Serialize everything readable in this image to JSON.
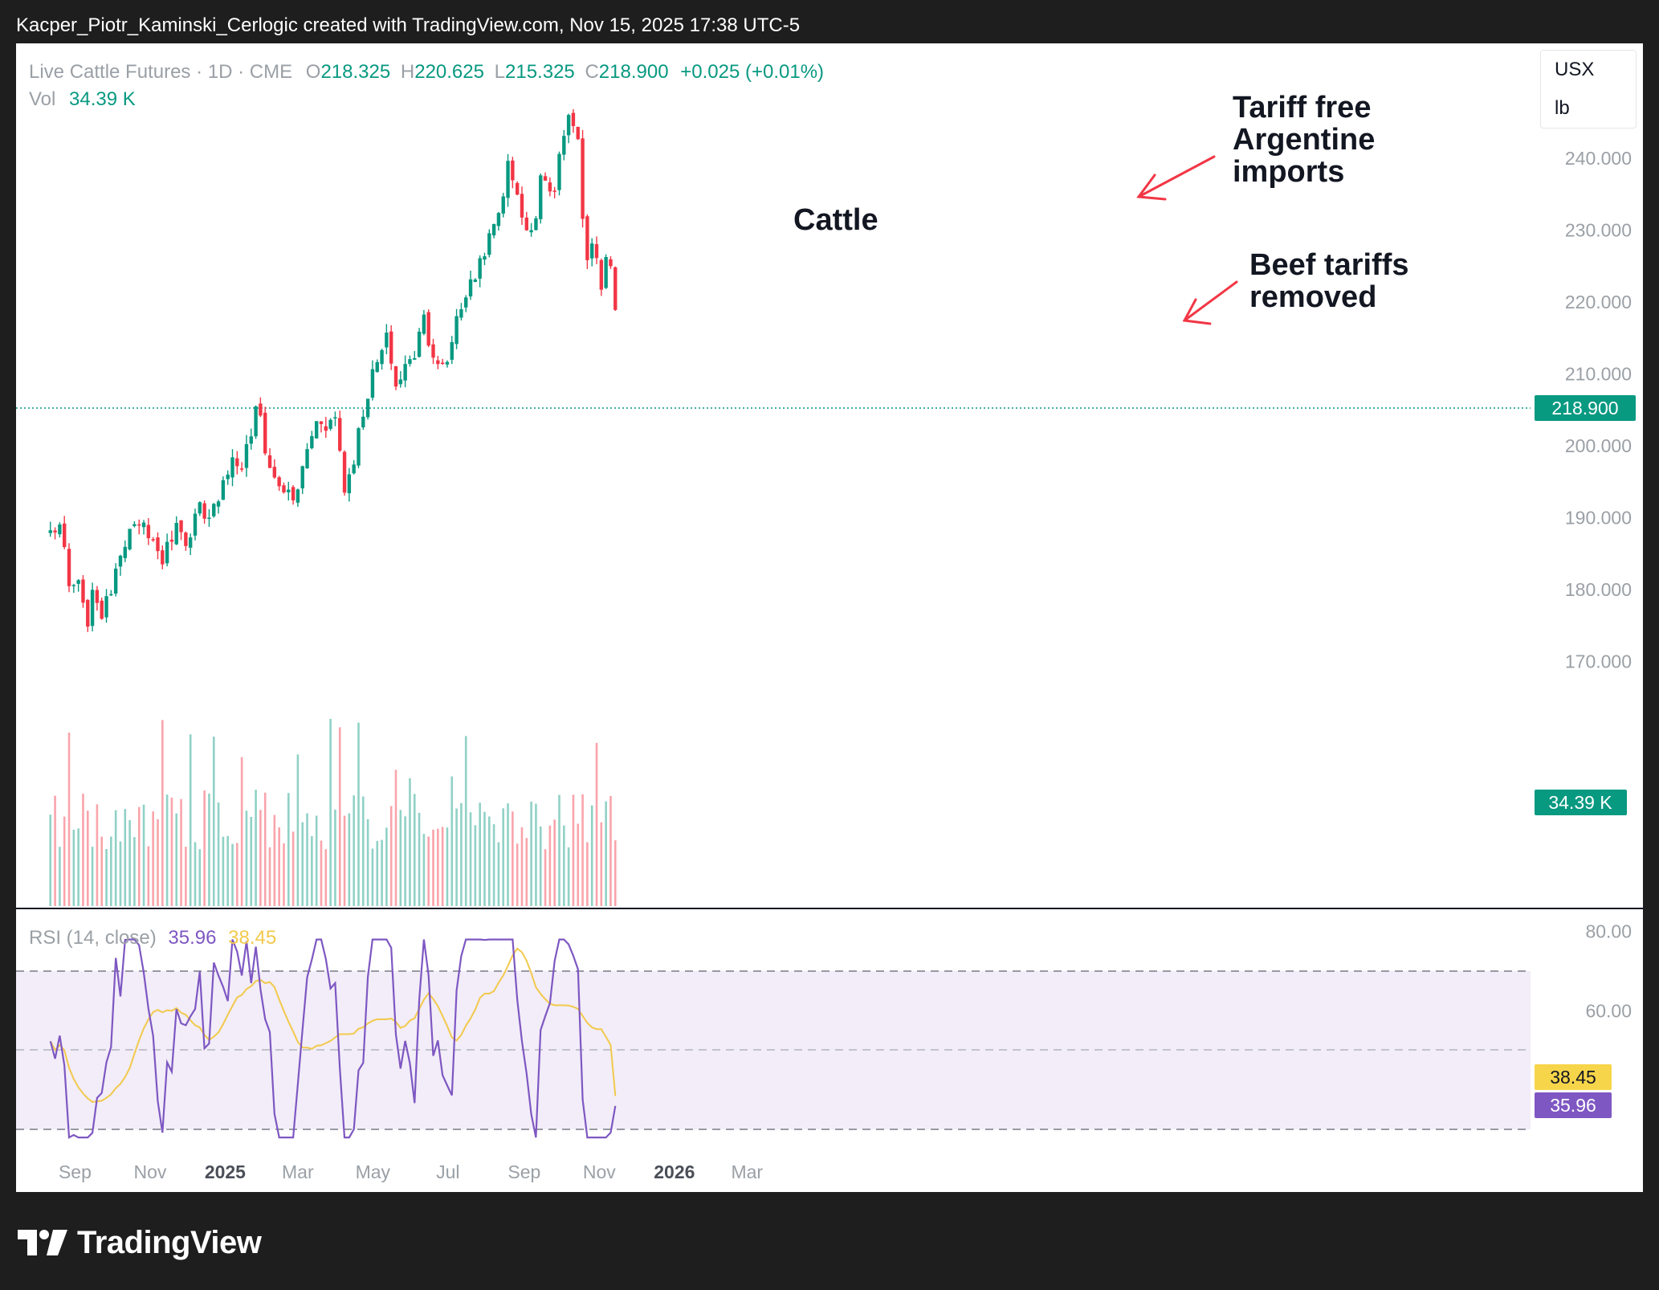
{
  "header": {
    "title": "Kacper_Piotr_Kaminski_Cerlogic created with TradingView.com, Nov 15, 2025 17:38 UTC-5"
  },
  "legend": {
    "symbol": "Live Cattle Futures · 1D · CME",
    "o_label": "O",
    "o_value": "218.325",
    "h_label": "H",
    "h_value": "220.625",
    "l_label": "L",
    "l_value": "215.325",
    "c_label": "C",
    "c_value": "218.900",
    "change": "+0.025 (+0.01%)",
    "vol_label": "Vol",
    "vol_value": "34.39 K"
  },
  "units": {
    "currency": "USX",
    "unit": "lb"
  },
  "annotations": {
    "title": "Cattle",
    "note1": [
      "Tariff free",
      "Argentine",
      "imports"
    ],
    "note2": [
      "Beef tariffs",
      "removed"
    ]
  },
  "rsi": {
    "label": "RSI (14, close)",
    "value": "35.96",
    "ma_value": "38.45"
  },
  "badges": {
    "price": "218.900",
    "volume": "34.39 K",
    "rsi_ma": "38.45",
    "rsi": "35.96"
  },
  "footer": {
    "brand": "TradingView"
  },
  "colors": {
    "up": "#089981",
    "down": "#f23645",
    "rsi_line": "#7e57c2",
    "rsi_ma": "#f2c94c",
    "rsi_band": "#ede7f6",
    "arrow": "#f23645"
  },
  "chart_data": [
    {
      "type": "candlestick",
      "title": "Cattle",
      "series_name": "Live Cattle Futures",
      "ylim": [
        165,
        247
      ],
      "y_ticks": [
        240,
        230,
        220,
        210,
        200,
        190,
        180,
        170
      ],
      "y_tick_labels": [
        "240.000",
        "230.000",
        "220.000",
        "210.000",
        "200.000",
        "190.000",
        "180.000",
        "170.000"
      ],
      "x_ticks": [
        "Sep",
        "Nov",
        "2025",
        "Mar",
        "May",
        "Jul",
        "Sep",
        "Nov",
        "2026",
        "Mar"
      ],
      "last_price": 218.9,
      "path": [
        [
          "2024-08-12",
          188
        ],
        [
          "2024-08-20",
          189
        ],
        [
          "2024-08-27",
          180
        ],
        [
          "2024-09-03",
          181
        ],
        [
          "2024-09-10",
          175
        ],
        [
          "2024-09-17",
          180
        ],
        [
          "2024-09-24",
          176
        ],
        [
          "2024-10-01",
          181
        ],
        [
          "2024-10-08",
          186
        ],
        [
          "2024-10-15",
          188
        ],
        [
          "2024-10-22",
          188
        ],
        [
          "2024-10-29",
          189
        ],
        [
          "2024-11-05",
          186
        ],
        [
          "2024-11-12",
          184
        ],
        [
          "2024-11-19",
          188
        ],
        [
          "2024-11-26",
          189
        ],
        [
          "2024-12-03",
          186
        ],
        [
          "2024-12-10",
          192
        ],
        [
          "2024-12-17",
          188
        ],
        [
          "2024-12-24",
          192
        ],
        [
          "2024-12-31",
          196
        ],
        [
          "2025-01-07",
          198
        ],
        [
          "2025-01-14",
          197
        ],
        [
          "2025-01-21",
          201
        ],
        [
          "2025-01-28",
          206
        ],
        [
          "2025-02-04",
          198
        ],
        [
          "2025-02-11",
          195
        ],
        [
          "2025-02-18",
          194
        ],
        [
          "2025-02-25",
          192
        ],
        [
          "2025-03-04",
          196
        ],
        [
          "2025-03-11",
          201
        ],
        [
          "2025-03-18",
          204
        ],
        [
          "2025-03-25",
          203
        ],
        [
          "2025-04-01",
          204
        ],
        [
          "2025-04-08",
          194
        ],
        [
          "2025-04-15",
          198
        ],
        [
          "2025-04-22",
          204
        ],
        [
          "2025-04-29",
          209
        ],
        [
          "2025-05-06",
          212
        ],
        [
          "2025-05-13",
          215
        ],
        [
          "2025-05-20",
          208
        ],
        [
          "2025-05-27",
          211
        ],
        [
          "2025-06-03",
          212
        ],
        [
          "2025-06-10",
          219
        ],
        [
          "2025-06-17",
          214
        ],
        [
          "2025-06-24",
          210
        ],
        [
          "2025-07-01",
          212
        ],
        [
          "2025-07-08",
          218
        ],
        [
          "2025-07-15",
          221
        ],
        [
          "2025-07-22",
          223
        ],
        [
          "2025-07-29",
          227
        ],
        [
          "2025-08-05",
          229
        ],
        [
          "2025-08-12",
          233
        ],
        [
          "2025-08-19",
          239
        ],
        [
          "2025-08-26",
          236
        ],
        [
          "2025-09-02",
          229
        ],
        [
          "2025-09-09",
          231
        ],
        [
          "2025-09-16",
          240
        ],
        [
          "2025-09-23",
          233
        ],
        [
          "2025-09-30",
          241
        ],
        [
          "2025-10-07",
          245
        ],
        [
          "2025-10-14",
          243
        ],
        [
          "2025-10-21",
          226
        ],
        [
          "2025-10-28",
          229
        ],
        [
          "2025-11-04",
          219
        ],
        [
          "2025-11-07",
          228
        ],
        [
          "2025-11-14",
          218.9
        ]
      ]
    },
    {
      "type": "bar",
      "title": "Vol",
      "last_value": "34.39 K",
      "note": "daily volume bars colored by candle direction"
    },
    {
      "type": "line",
      "title": "RSI (14, close)",
      "ylim": [
        0,
        100
      ],
      "y_ticks": [
        80,
        60
      ],
      "y_tick_labels": [
        "80.00",
        "60.00"
      ],
      "bands": [
        70,
        50,
        30
      ],
      "series": [
        {
          "name": "RSI",
          "last": 35.96
        },
        {
          "name": "MA",
          "last": 38.45
        }
      ]
    }
  ]
}
